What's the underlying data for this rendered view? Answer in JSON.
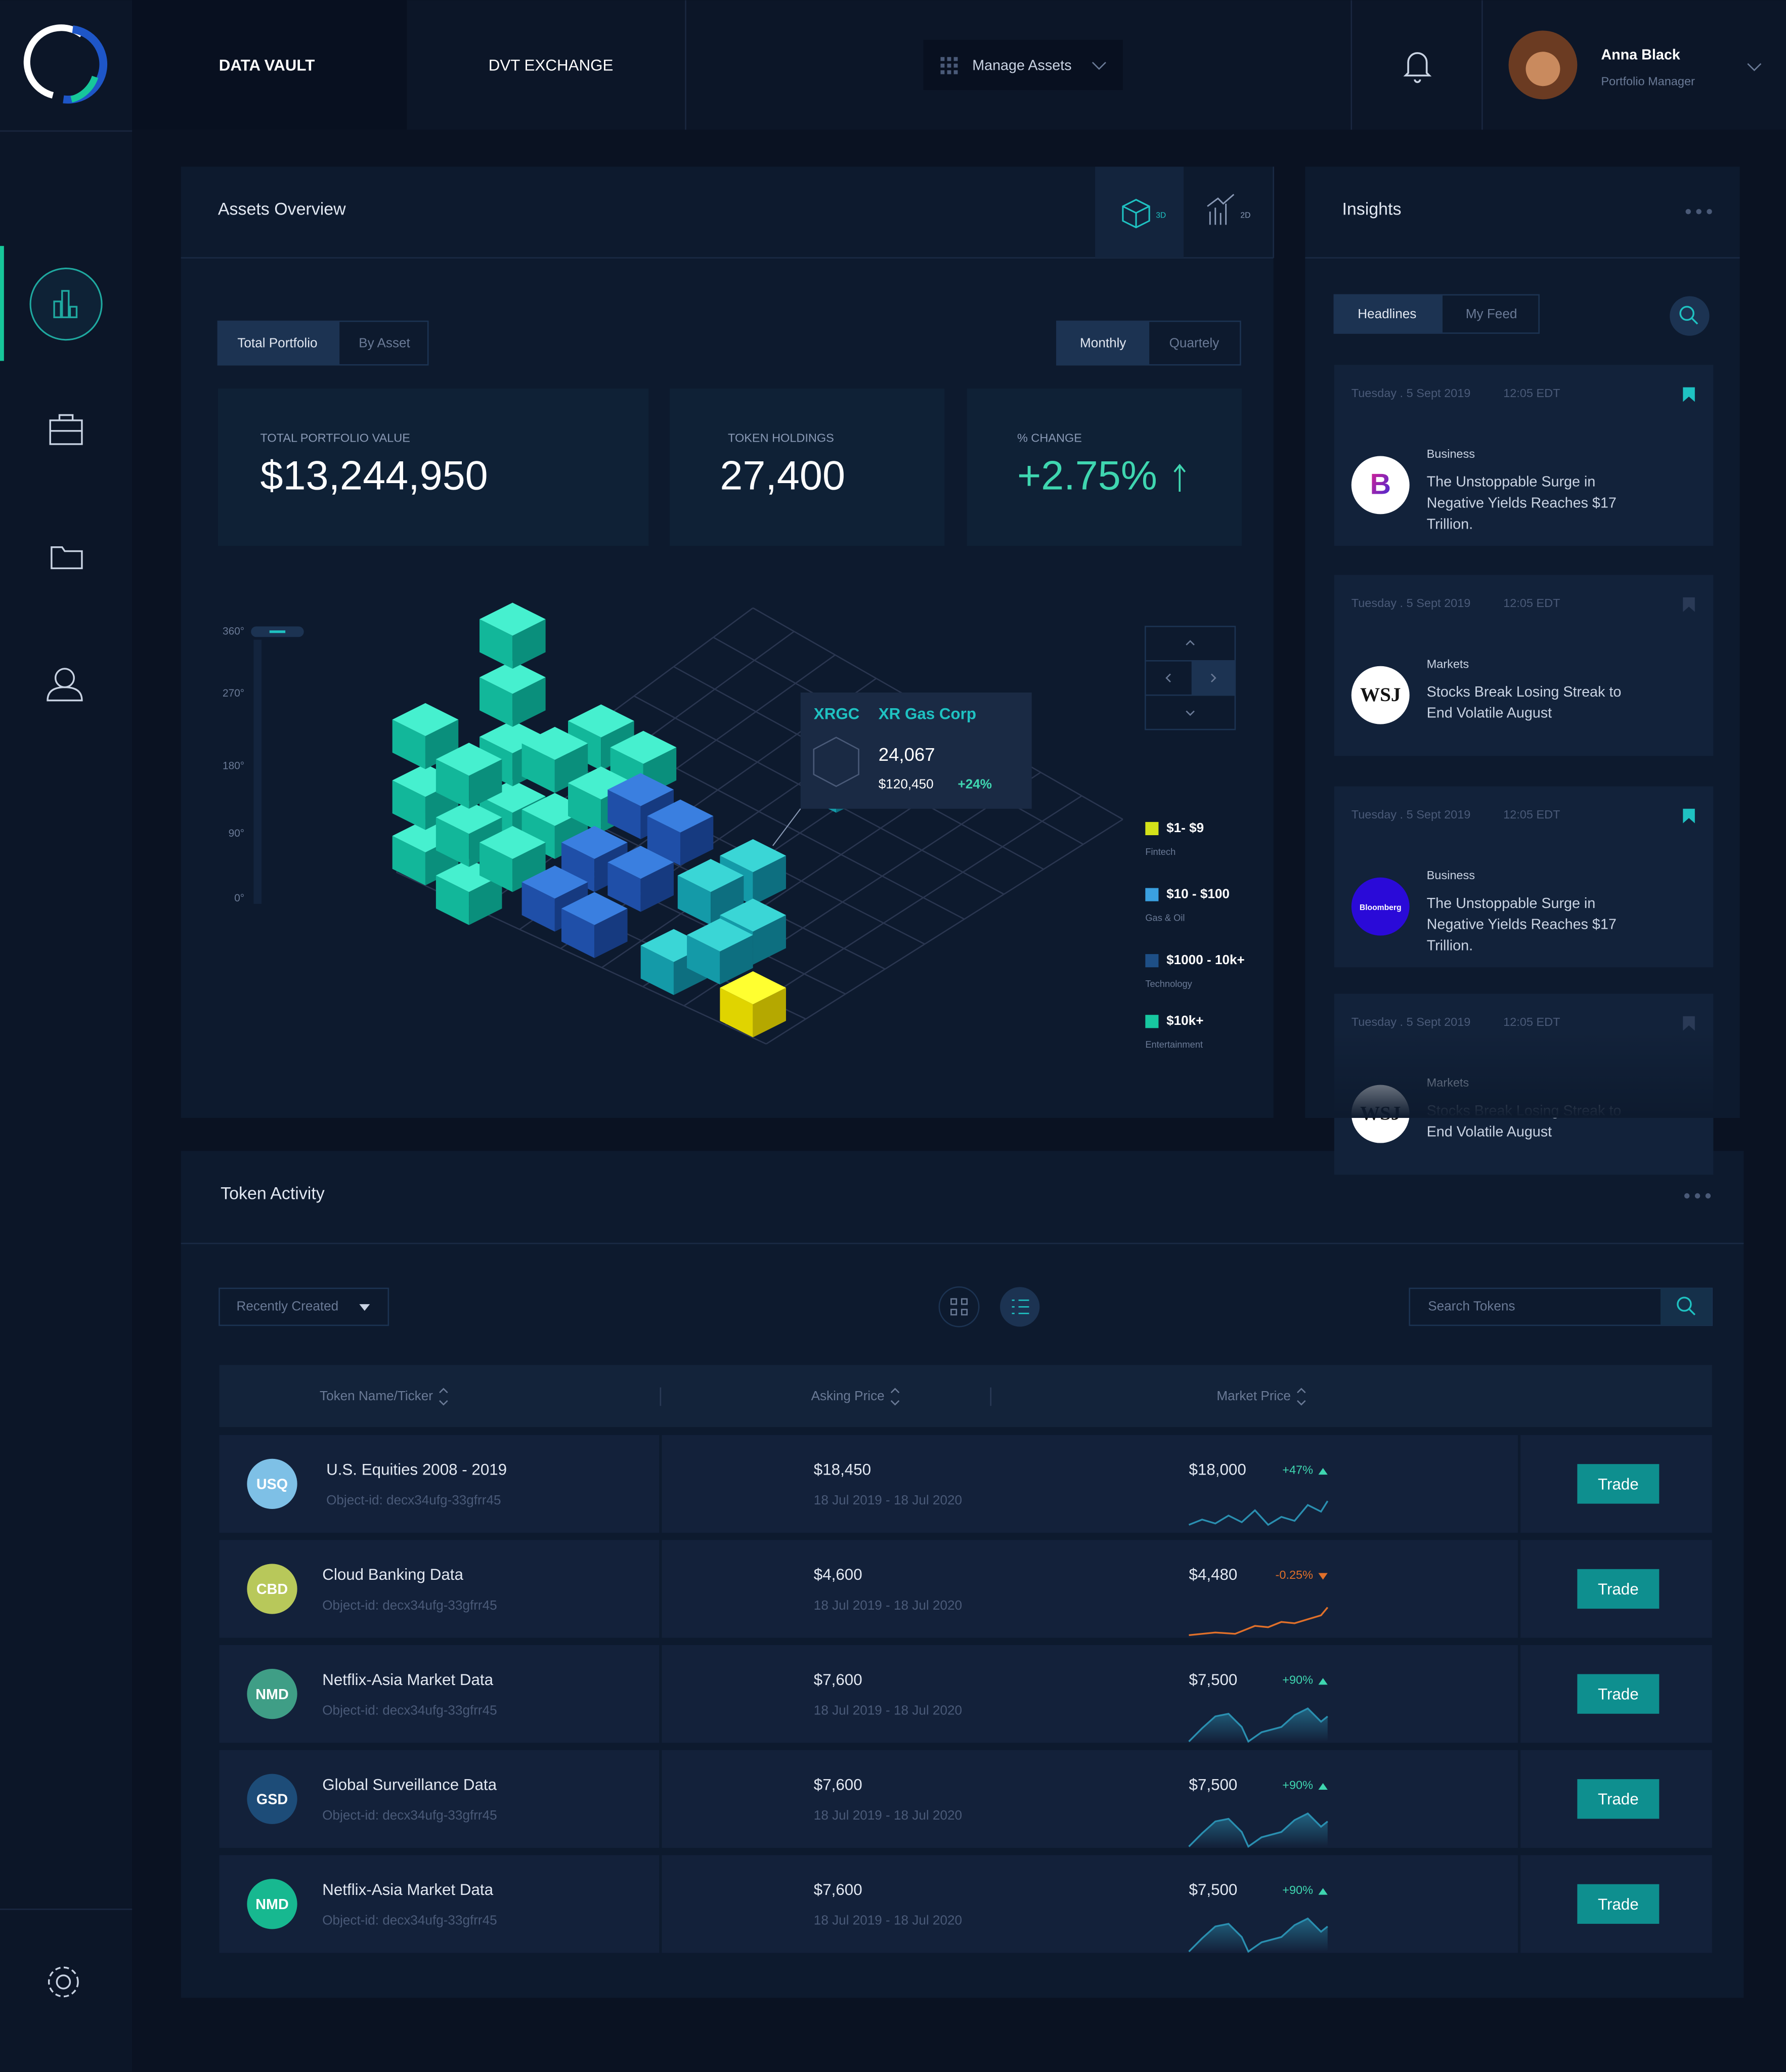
{
  "nav": {
    "brand": "DATA VAULT",
    "tabs": [
      "DVT EXCHANGE"
    ],
    "menu": "Manage Assets",
    "user": {
      "name": "Anna Black",
      "role": "Portfolio Manager"
    }
  },
  "assets": {
    "title": "Assets Overview",
    "view_modes": [
      "3D",
      "2D"
    ],
    "scope_tabs": [
      "Total Portfolio",
      "By Asset"
    ],
    "period_tabs": [
      "Monthly",
      "Quartely"
    ],
    "stats": [
      {
        "label": "TOTAL PORTFOLIO VALUE",
        "value": "$13,244,950"
      },
      {
        "label": "TOKEN HOLDINGS",
        "value": "27,400"
      },
      {
        "label": "% CHANGE",
        "value": "+2.75%"
      }
    ],
    "rotation_ticks": [
      "360°",
      "270°",
      "180°",
      "90°",
      "0°"
    ],
    "tooltip": {
      "ticker": "XRGC",
      "name": "XR Gas Corp",
      "holdings": "24,067",
      "value": "$120,450",
      "change": "+24%"
    },
    "legend": [
      {
        "range": "$1- $9",
        "sector": "Fintech",
        "color": "#d4e21a"
      },
      {
        "range": "$10 - $100",
        "sector": "Gas & Oil",
        "color": "#3aa0e0"
      },
      {
        "range": "$1000 - 10k+",
        "sector": "Technology",
        "color": "#1e4f86"
      },
      {
        "range": "$10k+",
        "sector": "Entertainment",
        "color": "#17c7a0"
      }
    ]
  },
  "insights": {
    "title": "Insights",
    "tabs": [
      "Headlines",
      "My Feed"
    ],
    "items": [
      {
        "date": "Tuesday . 5 Sept 2019",
        "time": "12:05 EDT",
        "category": "Business",
        "headline": "The Unstoppable Surge in Negative Yields Reaches $17 Trillion.",
        "source": "B",
        "bookmarked": true
      },
      {
        "date": "Tuesday . 5 Sept 2019",
        "time": "12:05 EDT",
        "category": "Markets",
        "headline": "Stocks Break Losing Streak to End Volatile August",
        "source": "WSJ",
        "bookmarked": false
      },
      {
        "date": "Tuesday . 5 Sept 2019",
        "time": "12:05 EDT",
        "category": "Business",
        "headline": "The Unstoppable Surge in Negative Yields Reaches $17 Trillion.",
        "source": "Bloomberg",
        "bookmarked": true
      },
      {
        "date": "Tuesday . 5 Sept 2019",
        "time": "12:05 EDT",
        "category": "Markets",
        "headline": "Stocks Break Losing Streak to End Volatile August",
        "source": "WSJ",
        "bookmarked": false
      }
    ]
  },
  "tokens": {
    "title": "Token Activity",
    "sort": "Recently Created",
    "search": "Search Tokens",
    "columns": [
      "Token Name/Ticker",
      "Asking Price",
      "Market Price"
    ],
    "action": "Trade",
    "rows": [
      {
        "ticker": "USQ",
        "name": "U.S. Equities 2008 - 2019",
        "id": "Object-id: decx34ufg-33gfrr45",
        "asking": "$18,450",
        "period": "18 Jul 2019 - 18 Jul 2020",
        "market": "$18,000",
        "change": "+47%",
        "color": "#7ec0e6"
      },
      {
        "ticker": "CBD",
        "name": "Cloud Banking Data",
        "id": "Object-id: decx34ufg-33gfrr45",
        "asking": "$4,600",
        "period": "18 Jul 2019 - 18 Jul 2020",
        "market": "$4,480",
        "change": "-0.25%",
        "color": "#b8c85a"
      },
      {
        "ticker": "NMD",
        "name": "Netflix-Asia Market Data",
        "id": "Object-id: decx34ufg-33gfrr45",
        "asking": "$7,600",
        "period": "18 Jul 2019 - 18 Jul 2020",
        "market": "$7,500",
        "change": "+90%",
        "color": "#3f9e86"
      },
      {
        "ticker": "GSD",
        "name": "Global Surveillance Data",
        "id": "Object-id: decx34ufg-33gfrr45",
        "asking": "$7,600",
        "period": "18 Jul 2019 - 18 Jul 2020",
        "market": "$7,500",
        "change": "+90%",
        "color": "#1d4c78"
      },
      {
        "ticker": "NMD",
        "name": "Netflix-Asia Market Data",
        "id": "Object-id: decx34ufg-33gfrr45",
        "asking": "$7,600",
        "period": "18 Jul 2019 - 18 Jul 2020",
        "market": "$7,500",
        "change": "+90%",
        "color": "#17b890"
      }
    ]
  }
}
